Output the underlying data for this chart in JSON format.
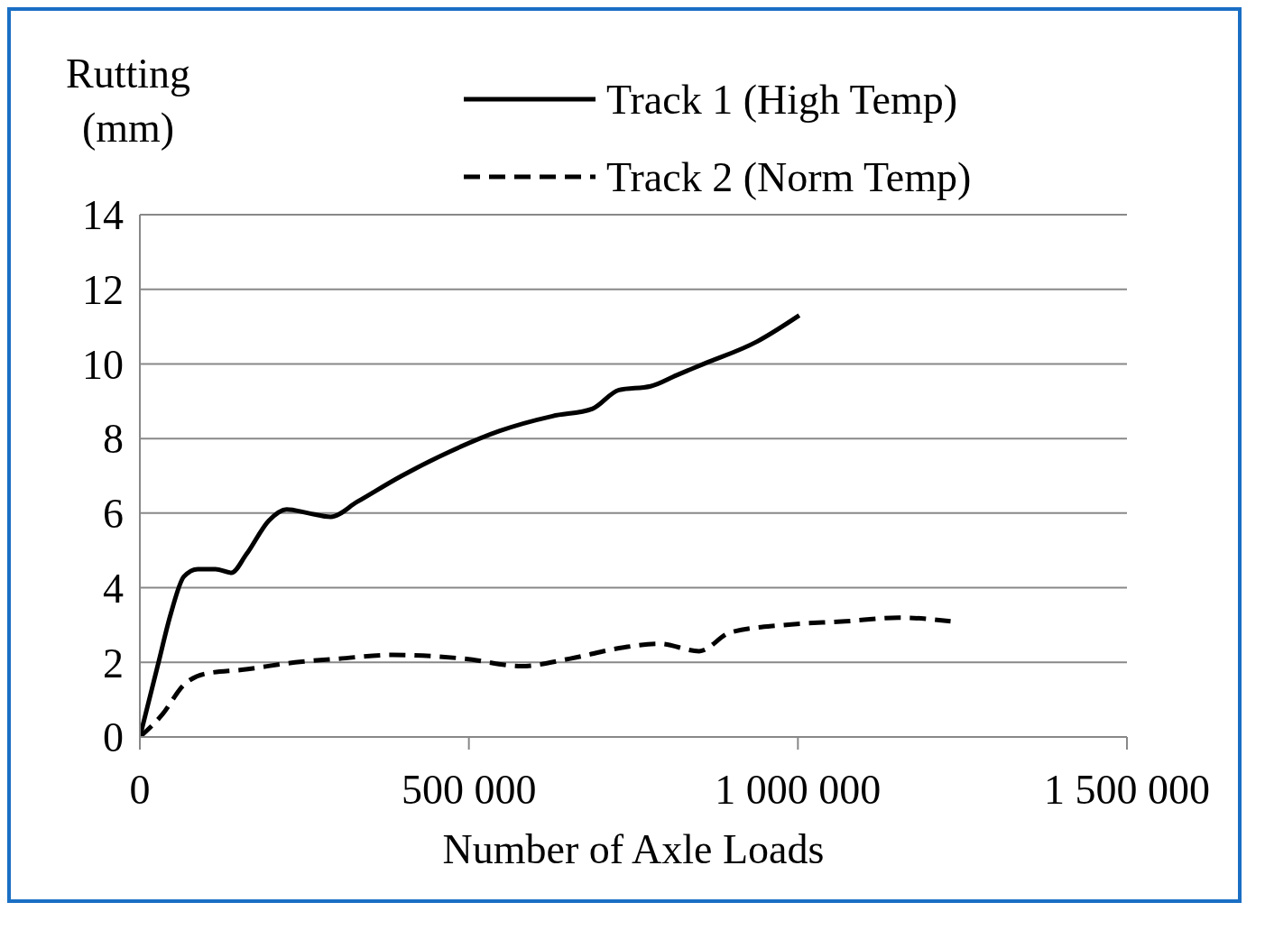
{
  "chart_data": {
    "type": "line",
    "xlabel": "Number of Axle Loads",
    "ylabel": "Rutting (mm)",
    "xlim": [
      0,
      1500000
    ],
    "xticks": [
      0,
      {
        "value": 500000,
        "label": "500 000"
      },
      {
        "value": 1000000,
        "label": "1 000 000"
      },
      {
        "value": 1500000,
        "label": "1 500 000"
      }
    ],
    "ylim": [
      0,
      14
    ],
    "yticks": [
      0,
      2,
      4,
      6,
      8,
      10,
      12,
      14
    ],
    "grid": "y",
    "legend": "top",
    "marker": "none",
    "series": [
      {
        "name": "Track 1 (High Temp)",
        "color": "#000000",
        "line_style": "solid",
        "x": [
          0,
          27000,
          47000,
          67000,
          88000,
          115000,
          139000,
          162000,
          196000,
          223000,
          256000,
          290000,
          330000,
          398000,
          465000,
          546000,
          627000,
          688000,
          728000,
          776000,
          816000,
          857000,
          938000,
          1002000
        ],
        "values": [
          0,
          1.9,
          3.3,
          4.3,
          4.5,
          4.5,
          4.4,
          4.9,
          5.8,
          6.1,
          6.0,
          5.9,
          6.3,
          7.0,
          7.6,
          8.2,
          8.6,
          8.8,
          9.3,
          9.4,
          9.7,
          10.0,
          10.6,
          11.3
        ]
      },
      {
        "name": "Track 2 (Norm Temp)",
        "color": "#000000",
        "line_style": "dashed",
        "x": [
          0,
          34000,
          67000,
          101000,
          155000,
          236000,
          303000,
          384000,
          492000,
          580000,
          654000,
          735000,
          789000,
          850000,
          897000,
          978000,
          1072000,
          1153000,
          1232000
        ],
        "values": [
          0,
          0.6,
          1.4,
          1.7,
          1.8,
          2.0,
          2.1,
          2.2,
          2.1,
          1.9,
          2.1,
          2.4,
          2.5,
          2.3,
          2.8,
          3.0,
          3.1,
          3.2,
          3.1
        ]
      }
    ]
  }
}
